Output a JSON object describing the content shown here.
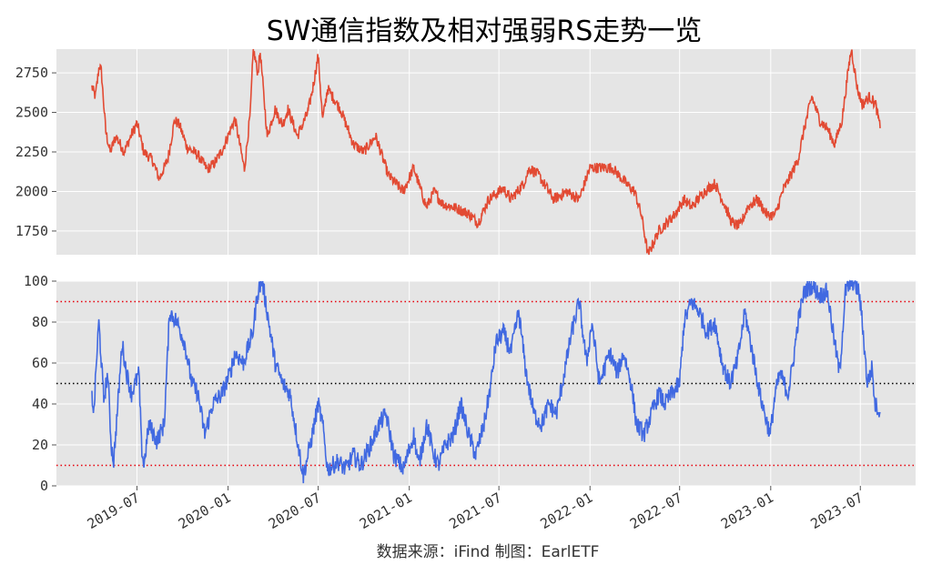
{
  "title": "SW通信指数及相对强弱RS走势一览",
  "footer": "数据来源：iFind 制图：EarlETF",
  "colors": {
    "panel_bg": "#e5e5e5",
    "grid": "#ffffff",
    "index_line": "#e24a33",
    "rs_line": "#4169e1",
    "ref_red": "#e8000b",
    "ref_black": "#000000"
  },
  "chart_data": [
    {
      "type": "line",
      "name": "index",
      "ylim": [
        1600,
        2900
      ],
      "yticks": [
        1750,
        2000,
        2250,
        2500,
        2750
      ],
      "x_start": "2019-04-01",
      "x_end": "2023-08-10",
      "keypoints": [
        [
          "2019-04-01",
          2660
        ],
        [
          "2019-04-08",
          2600
        ],
        [
          "2019-04-16",
          2800
        ],
        [
          "2019-04-20",
          2760
        ],
        [
          "2019-04-29",
          2380
        ],
        [
          "2019-05-08",
          2250
        ],
        [
          "2019-05-20",
          2350
        ],
        [
          "2019-06-05",
          2250
        ],
        [
          "2019-06-20",
          2360
        ],
        [
          "2019-07-01",
          2430
        ],
        [
          "2019-07-15",
          2250
        ],
        [
          "2019-08-01",
          2200
        ],
        [
          "2019-08-15",
          2080
        ],
        [
          "2019-09-01",
          2200
        ],
        [
          "2019-09-15",
          2450
        ],
        [
          "2019-09-25",
          2420
        ],
        [
          "2019-10-10",
          2280
        ],
        [
          "2019-11-01",
          2230
        ],
        [
          "2019-11-20",
          2140
        ],
        [
          "2019-12-05",
          2180
        ],
        [
          "2019-12-20",
          2260
        ],
        [
          "2020-01-15",
          2460
        ],
        [
          "2020-02-03",
          2140
        ],
        [
          "2020-02-15",
          2500
        ],
        [
          "2020-02-21",
          2900
        ],
        [
          "2020-03-01",
          2750
        ],
        [
          "2020-03-06",
          2880
        ],
        [
          "2020-03-20",
          2350
        ],
        [
          "2020-04-05",
          2520
        ],
        [
          "2020-04-20",
          2420
        ],
        [
          "2020-05-01",
          2520
        ],
        [
          "2020-05-20",
          2350
        ],
        [
          "2020-06-10",
          2500
        ],
        [
          "2020-06-20",
          2650
        ],
        [
          "2020-07-01",
          2860
        ],
        [
          "2020-07-10",
          2450
        ],
        [
          "2020-07-20",
          2650
        ],
        [
          "2020-08-15",
          2520
        ],
        [
          "2020-09-10",
          2300
        ],
        [
          "2020-10-01",
          2250
        ],
        [
          "2020-10-25",
          2350
        ],
        [
          "2020-11-20",
          2100
        ],
        [
          "2020-12-20",
          2000
        ],
        [
          "2021-01-10",
          2150
        ],
        [
          "2021-01-25",
          2000
        ],
        [
          "2021-02-05",
          1900
        ],
        [
          "2021-02-20",
          2000
        ],
        [
          "2021-03-10",
          1920
        ],
        [
          "2021-04-01",
          1900
        ],
        [
          "2021-05-01",
          1860
        ],
        [
          "2021-05-20",
          1800
        ],
        [
          "2021-06-10",
          1950
        ],
        [
          "2021-07-10",
          2020
        ],
        [
          "2021-07-25",
          1950
        ],
        [
          "2021-08-20",
          2050
        ],
        [
          "2021-09-01",
          2150
        ],
        [
          "2021-09-20",
          2100
        ],
        [
          "2021-10-20",
          1950
        ],
        [
          "2021-11-15",
          2000
        ],
        [
          "2021-12-10",
          1950
        ],
        [
          "2022-01-01",
          2150
        ],
        [
          "2022-01-20",
          2150
        ],
        [
          "2022-02-15",
          2150
        ],
        [
          "2022-03-01",
          2100
        ],
        [
          "2022-03-15",
          2050
        ],
        [
          "2022-04-01",
          2000
        ],
        [
          "2022-04-15",
          1850
        ],
        [
          "2022-04-28",
          1600
        ],
        [
          "2022-05-20",
          1750
        ],
        [
          "2022-06-20",
          1850
        ],
        [
          "2022-07-10",
          1950
        ],
        [
          "2022-07-25",
          1900
        ],
        [
          "2022-08-20",
          2000
        ],
        [
          "2022-09-10",
          2050
        ],
        [
          "2022-09-25",
          1950
        ],
        [
          "2022-10-15",
          1800
        ],
        [
          "2022-10-31",
          1780
        ],
        [
          "2022-11-15",
          1900
        ],
        [
          "2022-12-05",
          1950
        ],
        [
          "2022-12-25",
          1850
        ],
        [
          "2023-01-10",
          1850
        ],
        [
          "2023-01-25",
          2000
        ],
        [
          "2023-02-10",
          2100
        ],
        [
          "2023-02-25",
          2200
        ],
        [
          "2023-03-10",
          2400
        ],
        [
          "2023-03-25",
          2600
        ],
        [
          "2023-04-10",
          2450
        ],
        [
          "2023-04-25",
          2400
        ],
        [
          "2023-05-10",
          2300
        ],
        [
          "2023-05-25",
          2450
        ],
        [
          "2023-06-08",
          2800
        ],
        [
          "2023-06-13",
          2900
        ],
        [
          "2023-06-25",
          2650
        ],
        [
          "2023-07-05",
          2550
        ],
        [
          "2023-07-20",
          2600
        ],
        [
          "2023-08-01",
          2550
        ],
        [
          "2023-08-10",
          2400
        ]
      ]
    },
    {
      "type": "line",
      "name": "RS",
      "ylim": [
        0,
        100
      ],
      "yticks": [
        0,
        20,
        40,
        60,
        80,
        100
      ],
      "reference_lines": [
        {
          "y": 90,
          "color": "#e8000b",
          "style": "dotted"
        },
        {
          "y": 50,
          "color": "#000000",
          "style": "dotted"
        },
        {
          "y": 10,
          "color": "#e8000b",
          "style": "dotted"
        }
      ],
      "x_start": "2019-04-01",
      "x_end": "2023-08-10",
      "xticks": [
        "2019-07",
        "2020-01",
        "2020-07",
        "2021-01",
        "2021-07",
        "2022-01",
        "2022-07",
        "2023-01",
        "2023-07"
      ],
      "keypoints": [
        [
          "2019-04-01",
          45
        ],
        [
          "2019-04-05",
          35
        ],
        [
          "2019-04-10",
          60
        ],
        [
          "2019-04-15",
          80
        ],
        [
          "2019-04-25",
          42
        ],
        [
          "2019-05-03",
          55
        ],
        [
          "2019-05-10",
          20
        ],
        [
          "2019-05-15",
          12
        ],
        [
          "2019-05-25",
          45
        ],
        [
          "2019-06-01",
          70
        ],
        [
          "2019-06-10",
          55
        ],
        [
          "2019-06-20",
          45
        ],
        [
          "2019-07-05",
          55
        ],
        [
          "2019-07-10",
          20
        ],
        [
          "2019-07-15",
          10
        ],
        [
          "2019-07-25",
          30
        ],
        [
          "2019-08-10",
          22
        ],
        [
          "2019-08-25",
          30
        ],
        [
          "2019-09-05",
          85
        ],
        [
          "2019-09-20",
          80
        ],
        [
          "2019-10-05",
          70
        ],
        [
          "2019-10-20",
          50
        ],
        [
          "2019-11-01",
          45
        ],
        [
          "2019-11-15",
          25
        ],
        [
          "2019-12-01",
          40
        ],
        [
          "2019-12-20",
          45
        ],
        [
          "2020-01-05",
          55
        ],
        [
          "2020-01-15",
          65
        ],
        [
          "2020-02-01",
          60
        ],
        [
          "2020-02-20",
          75
        ],
        [
          "2020-03-01",
          95
        ],
        [
          "2020-03-10",
          100
        ],
        [
          "2020-03-20",
          85
        ],
        [
          "2020-04-05",
          60
        ],
        [
          "2020-04-20",
          50
        ],
        [
          "2020-05-05",
          45
        ],
        [
          "2020-05-15",
          30
        ],
        [
          "2020-05-25",
          15
        ],
        [
          "2020-06-01",
          5
        ],
        [
          "2020-06-15",
          20
        ],
        [
          "2020-07-01",
          40
        ],
        [
          "2020-07-10",
          30
        ],
        [
          "2020-07-20",
          8
        ],
        [
          "2020-08-10",
          12
        ],
        [
          "2020-08-25",
          8
        ],
        [
          "2020-09-10",
          15
        ],
        [
          "2020-09-25",
          10
        ],
        [
          "2020-10-15",
          20
        ],
        [
          "2020-11-01",
          30
        ],
        [
          "2020-11-15",
          35
        ],
        [
          "2020-12-01",
          15
        ],
        [
          "2020-12-20",
          8
        ],
        [
          "2021-01-10",
          25
        ],
        [
          "2021-01-20",
          10
        ],
        [
          "2021-02-05",
          30
        ],
        [
          "2021-02-20",
          15
        ],
        [
          "2021-03-01",
          10
        ],
        [
          "2021-03-15",
          20
        ],
        [
          "2021-04-01",
          25
        ],
        [
          "2021-04-15",
          40
        ],
        [
          "2021-05-01",
          25
        ],
        [
          "2021-05-15",
          15
        ],
        [
          "2021-06-01",
          30
        ],
        [
          "2021-06-15",
          50
        ],
        [
          "2021-06-25",
          70
        ],
        [
          "2021-07-10",
          75
        ],
        [
          "2021-07-25",
          65
        ],
        [
          "2021-08-10",
          85
        ],
        [
          "2021-08-25",
          55
        ],
        [
          "2021-09-10",
          35
        ],
        [
          "2021-09-25",
          30
        ],
        [
          "2021-10-10",
          40
        ],
        [
          "2021-10-25",
          35
        ],
        [
          "2021-11-10",
          55
        ],
        [
          "2021-11-25",
          75
        ],
        [
          "2021-12-10",
          90
        ],
        [
          "2021-12-25",
          60
        ],
        [
          "2022-01-05",
          80
        ],
        [
          "2022-01-20",
          50
        ],
        [
          "2022-02-10",
          65
        ],
        [
          "2022-02-25",
          55
        ],
        [
          "2022-03-10",
          65
        ],
        [
          "2022-03-25",
          50
        ],
        [
          "2022-04-05",
          30
        ],
        [
          "2022-04-20",
          25
        ],
        [
          "2022-05-05",
          35
        ],
        [
          "2022-05-20",
          45
        ],
        [
          "2022-06-01",
          40
        ],
        [
          "2022-06-15",
          45
        ],
        [
          "2022-07-01",
          50
        ],
        [
          "2022-07-10",
          80
        ],
        [
          "2022-07-25",
          90
        ],
        [
          "2022-08-10",
          85
        ],
        [
          "2022-08-25",
          75
        ],
        [
          "2022-09-10",
          80
        ],
        [
          "2022-09-25",
          60
        ],
        [
          "2022-10-10",
          50
        ],
        [
          "2022-10-25",
          60
        ],
        [
          "2022-11-10",
          85
        ],
        [
          "2022-11-25",
          65
        ],
        [
          "2022-12-10",
          45
        ],
        [
          "2022-12-20",
          35
        ],
        [
          "2022-12-31",
          25
        ],
        [
          "2023-01-10",
          45
        ],
        [
          "2023-01-20",
          55
        ],
        [
          "2023-02-05",
          45
        ],
        [
          "2023-02-15",
          60
        ],
        [
          "2023-02-25",
          80
        ],
        [
          "2023-03-10",
          95
        ],
        [
          "2023-03-25",
          98
        ],
        [
          "2023-04-10",
          93
        ],
        [
          "2023-04-25",
          95
        ],
        [
          "2023-05-10",
          70
        ],
        [
          "2023-05-20",
          55
        ],
        [
          "2023-06-01",
          95
        ],
        [
          "2023-06-15",
          100
        ],
        [
          "2023-06-28",
          95
        ],
        [
          "2023-07-05",
          80
        ],
        [
          "2023-07-15",
          50
        ],
        [
          "2023-07-25",
          58
        ],
        [
          "2023-07-30",
          40
        ],
        [
          "2023-08-10",
          36
        ]
      ]
    }
  ]
}
